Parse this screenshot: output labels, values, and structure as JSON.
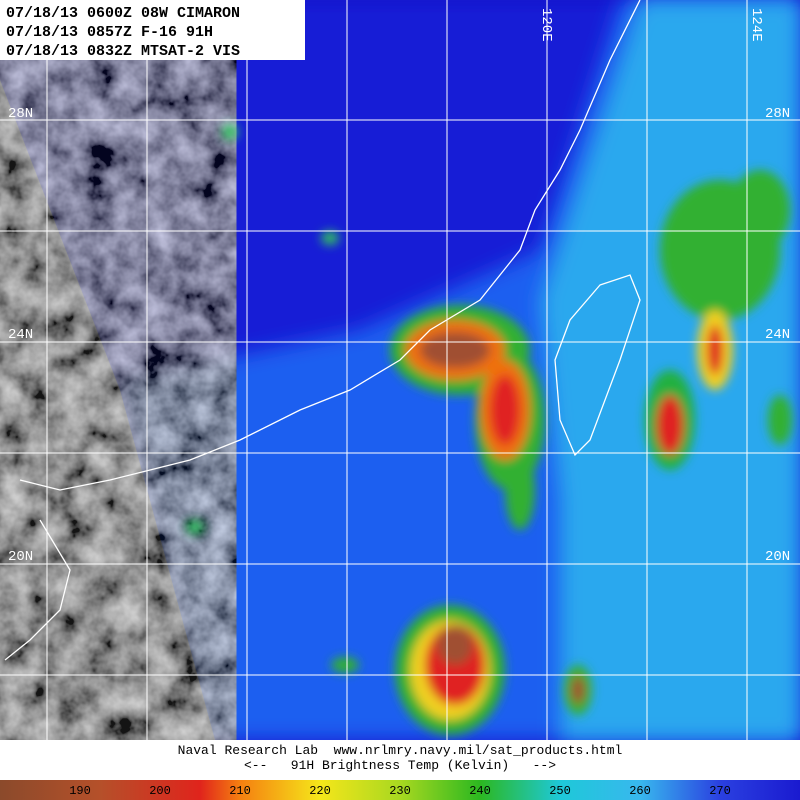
{
  "header": {
    "lines": [
      "07/18/13 0600Z 08W CIMARON",
      "07/18/13 0857Z F-16 91H",
      "07/18/13 0832Z MTSAT-2 VIS"
    ]
  },
  "grid_labels": {
    "latitude": [
      "28N",
      "24N",
      "20N"
    ],
    "longitude": [
      "120E",
      "124E"
    ]
  },
  "footer": {
    "credit": "Naval Research Lab  www.nrlmry.navy.mil/sat_products.html",
    "caption": "<--   91H Brightness Temp (Kelvin)   -->"
  },
  "colorbar": {
    "ticks": [
      190,
      200,
      210,
      220,
      230,
      240,
      250,
      260,
      270
    ]
  }
}
